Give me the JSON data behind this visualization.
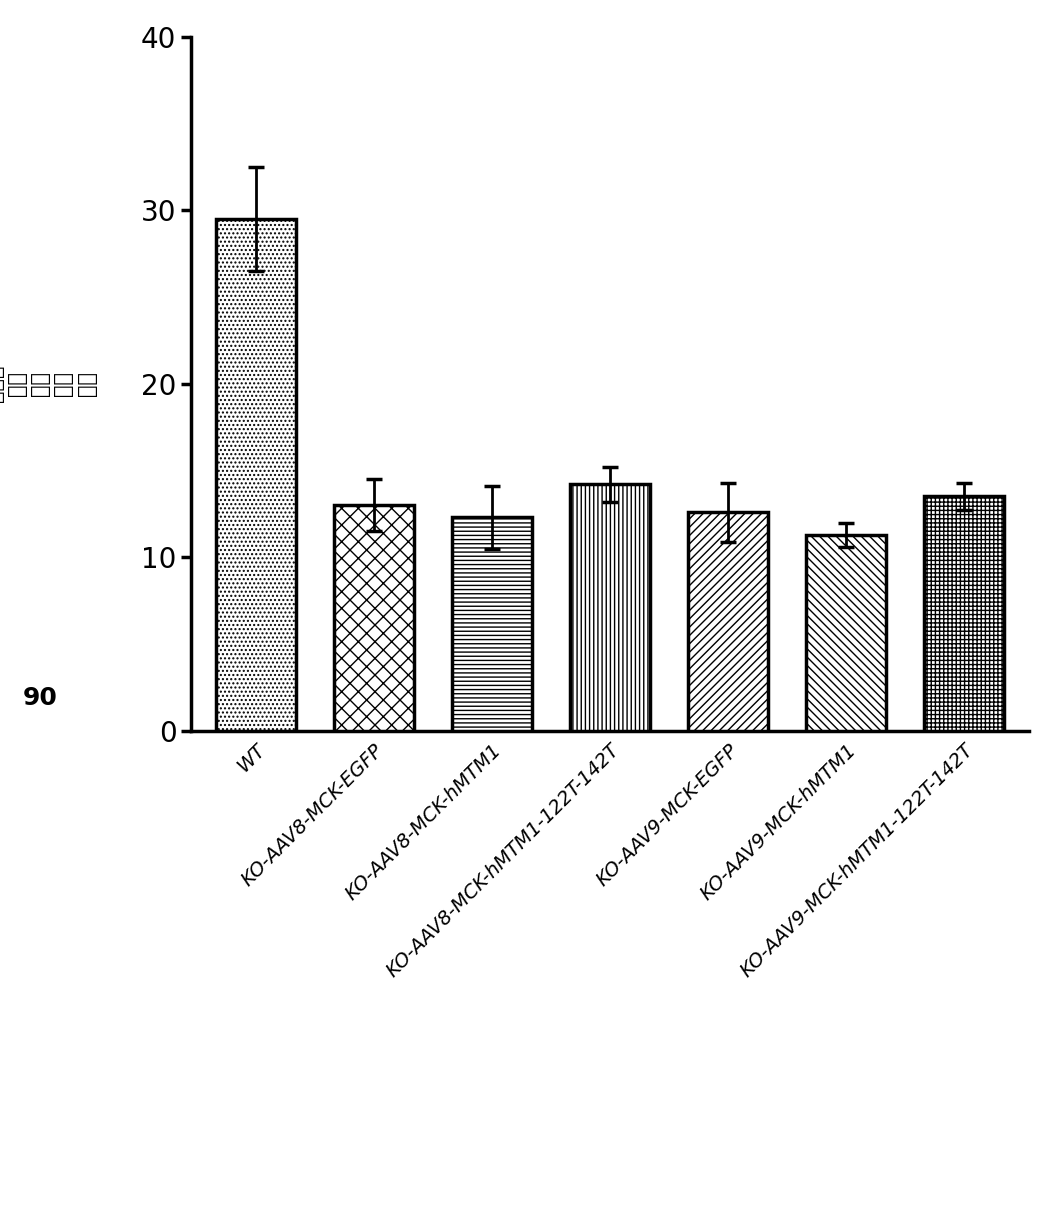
{
  "categories": [
    "WT",
    "KO-AAV8-MCK-EGFP",
    "KO-AAV8-MCK-hMTM1",
    "KO-AAV8-MCK-hMTM1-122T-142T",
    "KO-AAV9-MCK-EGFP",
    "KO-AAV9-MCK-hMTM1",
    "KO-AAV9-MCK-hMTM1-122T-142T"
  ],
  "values": [
    29.5,
    13.0,
    12.3,
    14.2,
    12.6,
    11.3,
    13.5
  ],
  "errors": [
    3.0,
    1.5,
    1.8,
    1.0,
    1.7,
    0.7,
    0.8
  ],
  "hatch_patterns": [
    "....",
    "xx",
    "---",
    "|||",
    "////",
    "\\\\",
    "xx||"
  ],
  "ylabel_chinese": "（米）\n距离\n轨迹\n运动\n分钟\n90",
  "ylabel_bold": "90",
  "ylim": [
    0,
    40
  ],
  "yticks": [
    0,
    10,
    20,
    30,
    40
  ],
  "bar_color": "#ffffff",
  "bar_edgecolor": "#000000",
  "error_color": "#000000",
  "bar_linewidth": 2.5,
  "figsize": [
    10.61,
    12.18
  ],
  "dpi": 100
}
